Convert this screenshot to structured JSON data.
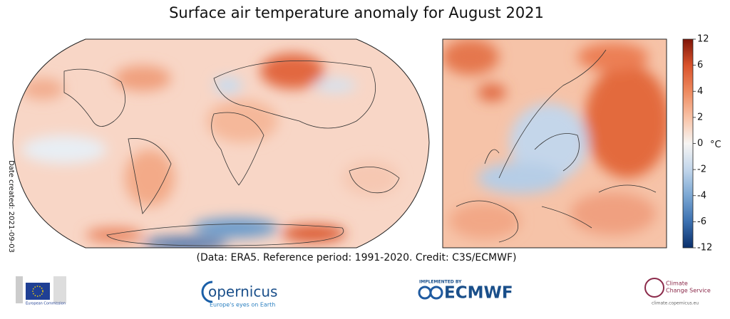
{
  "title": "Surface air temperature anomaly for August 2021",
  "caption": "(Data: ERA5.  Reference period: 1991-2020.  Credit: C3S/ECMWF)",
  "date_created": "Date created: 2021-09-03",
  "colorbar": {
    "unit": "°C",
    "ticks": [
      12,
      6,
      4,
      2,
      0,
      -2,
      -4,
      -6,
      -12
    ]
  },
  "logos": {
    "eu": "European Commission",
    "copernicus": "opernicus",
    "copernicus_tagline": "Europe's eyes on Earth",
    "implemented_by": "IMPLEMENTED BY",
    "ecmwf": "ECMWF",
    "c3s_line1": "Climate",
    "c3s_line2": "Change Service",
    "c3s_url": "climate.copernicus.eu"
  }
}
